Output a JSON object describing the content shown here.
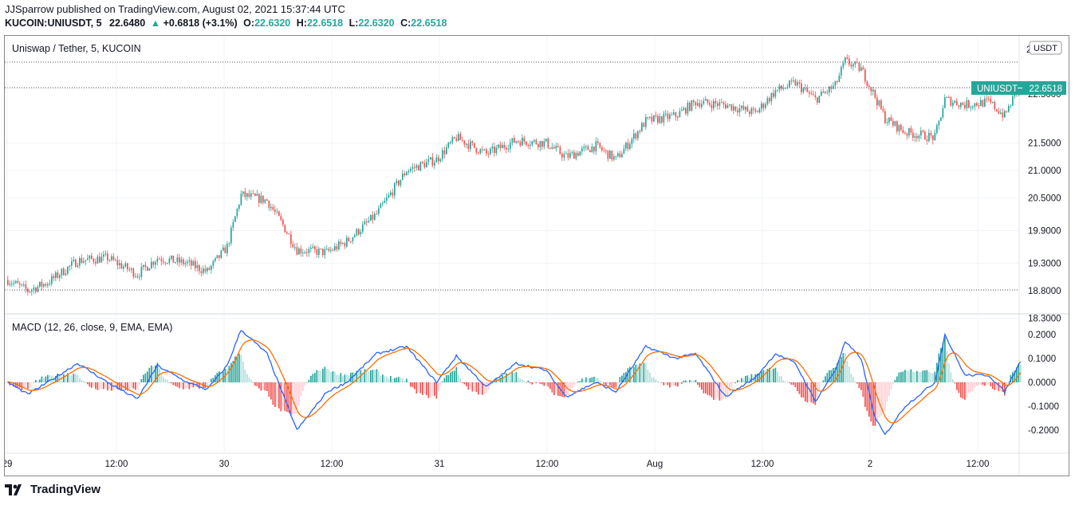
{
  "header": {
    "publish_line": "JJSparrow published on TradingView.com, August 02, 2021 15:37:44 UTC",
    "symbol": "KUCOIN:UNIUSDT, 5",
    "last": "22.6480",
    "arrow": "▲",
    "change": "+0.6818 (+3.1%)",
    "o_label": "O:",
    "o_value": "22.6320",
    "h_label": "H:",
    "h_value": "22.6518",
    "l_label": "L:",
    "l_value": "22.6320",
    "c_label": "C:",
    "c_value": "22.6518"
  },
  "chart": {
    "pane_title": "Uniswap / Tether, 5, KUCOIN",
    "currency_badge": "USDT",
    "price_ticks": [
      "22.5000",
      "21.5000",
      "21.0000",
      "20.5000",
      "19.9000",
      "19.3000",
      "18.8000",
      "18.3000"
    ],
    "price_ticks_top_partial": "2",
    "last_price_badge": {
      "symbol": "UNIUSDT",
      "value": "22.6518"
    },
    "indicator_title": "MACD (12, 26, close, 9, EMA, EMA)",
    "macd_ticks": [
      "0.2000",
      "0.1000",
      "0.0000",
      "-0.1000",
      "-0.2000"
    ],
    "time_ticks": [
      "29",
      "12:00",
      "30",
      "12:00",
      "31",
      "12:00",
      "Aug",
      "12:00",
      "2",
      "12:00"
    ],
    "colors": {
      "up": "#26a69a",
      "down": "#ef5350",
      "macd": "#2962ff",
      "signal": "#ff6d00",
      "badge": "#26a69a"
    }
  },
  "chart_data": {
    "type": "candlestick",
    "title": "Uniswap / Tether, 5, KUCOIN",
    "price_path": [
      [
        0,
        19.0
      ],
      [
        10,
        18.8
      ],
      [
        20,
        18.95
      ],
      [
        35,
        19.35
      ],
      [
        50,
        19.4
      ],
      [
        65,
        19.1
      ],
      [
        75,
        19.4
      ],
      [
        90,
        19.3
      ],
      [
        100,
        19.15
      ],
      [
        110,
        19.6
      ],
      [
        117,
        20.55
      ],
      [
        130,
        20.45
      ],
      [
        138,
        20.0
      ],
      [
        145,
        19.55
      ],
      [
        160,
        19.5
      ],
      [
        170,
        19.7
      ],
      [
        185,
        20.2
      ],
      [
        200,
        21.0
      ],
      [
        215,
        21.2
      ],
      [
        225,
        21.6
      ],
      [
        240,
        21.3
      ],
      [
        255,
        21.55
      ],
      [
        270,
        21.5
      ],
      [
        280,
        21.25
      ],
      [
        295,
        21.45
      ],
      [
        305,
        21.2
      ],
      [
        320,
        21.9
      ],
      [
        335,
        22.0
      ],
      [
        345,
        22.25
      ],
      [
        360,
        22.2
      ],
      [
        375,
        22.05
      ],
      [
        385,
        22.45
      ],
      [
        395,
        22.6
      ],
      [
        405,
        22.3
      ],
      [
        415,
        22.55
      ],
      [
        420,
        23.0
      ],
      [
        428,
        22.85
      ],
      [
        435,
        22.35
      ],
      [
        440,
        21.95
      ],
      [
        450,
        21.7
      ],
      [
        465,
        21.6
      ],
      [
        470,
        22.3
      ],
      [
        480,
        22.2
      ],
      [
        492,
        22.25
      ],
      [
        500,
        22.0
      ],
      [
        508,
        22.6
      ]
    ],
    "macd_path": [
      [
        0,
        0.0
      ],
      [
        10,
        -0.05
      ],
      [
        20,
        0.0
      ],
      [
        35,
        0.08
      ],
      [
        50,
        0.0
      ],
      [
        65,
        -0.07
      ],
      [
        75,
        0.07
      ],
      [
        90,
        0.0
      ],
      [
        100,
        -0.03
      ],
      [
        110,
        0.07
      ],
      [
        117,
        0.22
      ],
      [
        130,
        0.12
      ],
      [
        138,
        -0.05
      ],
      [
        145,
        -0.2
      ],
      [
        160,
        -0.04
      ],
      [
        170,
        0.0
      ],
      [
        185,
        0.12
      ],
      [
        200,
        0.15
      ],
      [
        215,
        0.0
      ],
      [
        225,
        0.11
      ],
      [
        240,
        -0.02
      ],
      [
        255,
        0.08
      ],
      [
        270,
        0.05
      ],
      [
        280,
        -0.06
      ],
      [
        295,
        0.0
      ],
      [
        305,
        -0.04
      ],
      [
        320,
        0.15
      ],
      [
        335,
        0.1
      ],
      [
        345,
        0.12
      ],
      [
        360,
        -0.06
      ],
      [
        375,
        0.02
      ],
      [
        385,
        0.12
      ],
      [
        395,
        0.08
      ],
      [
        405,
        -0.08
      ],
      [
        415,
        0.05
      ],
      [
        420,
        0.17
      ],
      [
        428,
        0.1
      ],
      [
        435,
        -0.15
      ],
      [
        440,
        -0.22
      ],
      [
        450,
        -0.1
      ],
      [
        465,
        0.0
      ],
      [
        470,
        0.2
      ],
      [
        480,
        0.03
      ],
      [
        492,
        0.03
      ],
      [
        500,
        -0.04
      ],
      [
        508,
        0.09
      ]
    ],
    "xlabel": "",
    "ylabel": "",
    "ylim": [
      18.3,
      22.9
    ],
    "macd_ylim": [
      -0.25,
      0.25
    ],
    "last_price": 22.6518
  }
}
